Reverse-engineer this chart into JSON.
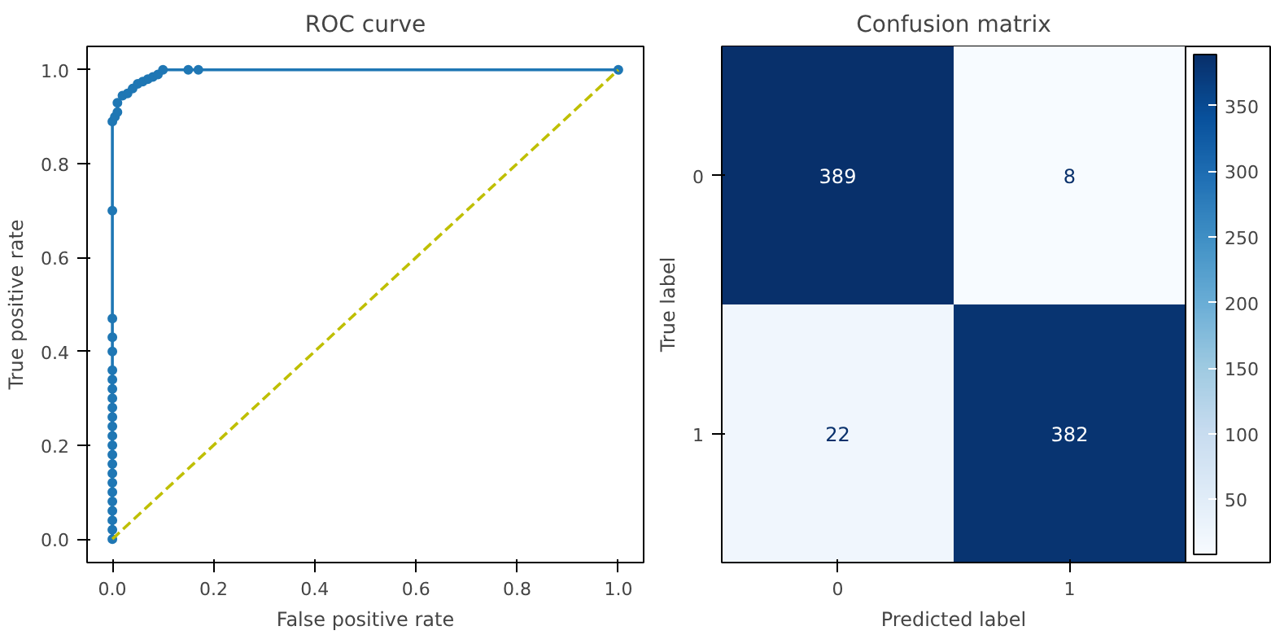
{
  "chart_data": [
    {
      "type": "line",
      "title": "ROC curve",
      "xlabel": "False positive rate",
      "ylabel": "True positive rate",
      "xlim": [
        -0.05,
        1.05
      ],
      "ylim": [
        -0.05,
        1.05
      ],
      "xticks": [
        {
          "value": 0,
          "label": "0.0"
        },
        {
          "value": 0.2,
          "label": "0.2"
        },
        {
          "value": 0.4,
          "label": "0.4"
        },
        {
          "value": 0.6,
          "label": "0.6"
        },
        {
          "value": 0.8,
          "label": "0.8"
        },
        {
          "value": 1,
          "label": "1.0"
        }
      ],
      "yticks": [
        {
          "value": 0,
          "label": "0.0"
        },
        {
          "value": 0.2,
          "label": "0.2"
        },
        {
          "value": 0.4,
          "label": "0.4"
        },
        {
          "value": 0.6,
          "label": "0.6"
        },
        {
          "value": 0.8,
          "label": "0.8"
        },
        {
          "value": 1,
          "label": "1.0"
        }
      ],
      "grid": false,
      "series": [
        {
          "color": "#1f77b4",
          "marker": "circle",
          "line_style": "solid",
          "x": [
            0,
            0,
            0,
            0,
            0,
            0,
            0,
            0,
            0,
            0,
            0,
            0,
            0,
            0,
            0,
            0,
            0,
            0,
            0,
            0,
            0,
            0,
            0,
            0,
            0.005,
            0.01,
            0.01,
            0.02,
            0.03,
            0.04,
            0.05,
            0.06,
            0.07,
            0.08,
            0.09,
            0.1,
            0.15,
            0.17,
            1
          ],
          "values": [
            0,
            0.02,
            0.04,
            0.06,
            0.08,
            0.1,
            0.12,
            0.14,
            0.16,
            0.18,
            0.2,
            0.22,
            0.24,
            0.26,
            0.28,
            0.3,
            0.32,
            0.34,
            0.36,
            0.4,
            0.43,
            0.47,
            0.7,
            0.89,
            0.9,
            0.91,
            0.93,
            0.945,
            0.95,
            0.96,
            0.97,
            0.975,
            0.98,
            0.985,
            0.99,
            1,
            1,
            1,
            1
          ]
        },
        {
          "color": "#bfbf00",
          "marker": "none",
          "line_style": "dashed",
          "x": [
            0,
            1
          ],
          "values": [
            0,
            1
          ]
        }
      ]
    },
    {
      "type": "heatmap",
      "title": "Confusion matrix",
      "xlabel": "Predicted label",
      "ylabel": "True label",
      "categories": [
        "0",
        "1"
      ],
      "y_categories": [
        "0",
        "1"
      ],
      "cells": [
        [
          389,
          8
        ],
        [
          22,
          382
        ]
      ],
      "clim": [
        8,
        389
      ],
      "cticks": [
        50,
        100,
        150,
        200,
        250,
        300,
        350
      ],
      "data_labels": true
    }
  ]
}
